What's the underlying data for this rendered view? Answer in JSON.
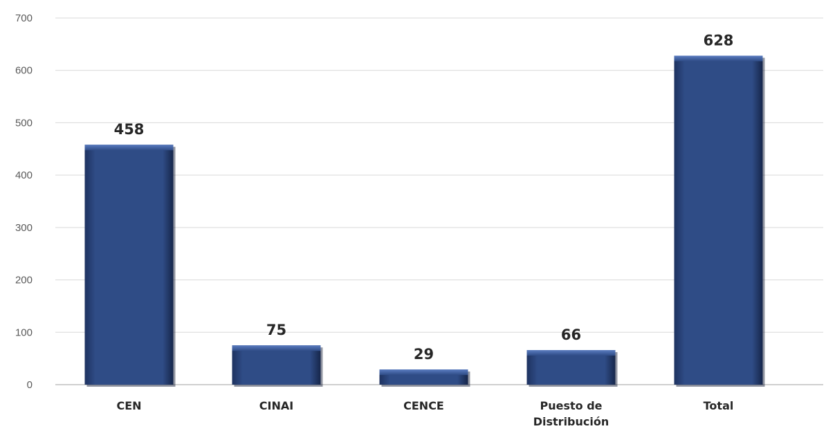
{
  "chart_data": {
    "type": "bar",
    "categories": [
      "CEN",
      "CINAI",
      "CENCE",
      "Puesto de Distribución",
      "Total"
    ],
    "values": [
      458,
      75,
      29,
      66,
      628
    ],
    "data_labels": [
      "458",
      "75",
      "29",
      "66",
      "628"
    ],
    "ylim": [
      0,
      700
    ],
    "yticks": [
      0,
      100,
      200,
      300,
      400,
      500,
      600,
      700
    ],
    "grid": true,
    "legend": "none",
    "title": "",
    "xlabel": "",
    "ylabel": "",
    "colors": {
      "bar": "#2e4a82",
      "bar_top": "#4a6bb0",
      "bar_dark": "#1e3260",
      "grid": "#d9d9d9",
      "axis": "#bfbfbf"
    }
  }
}
